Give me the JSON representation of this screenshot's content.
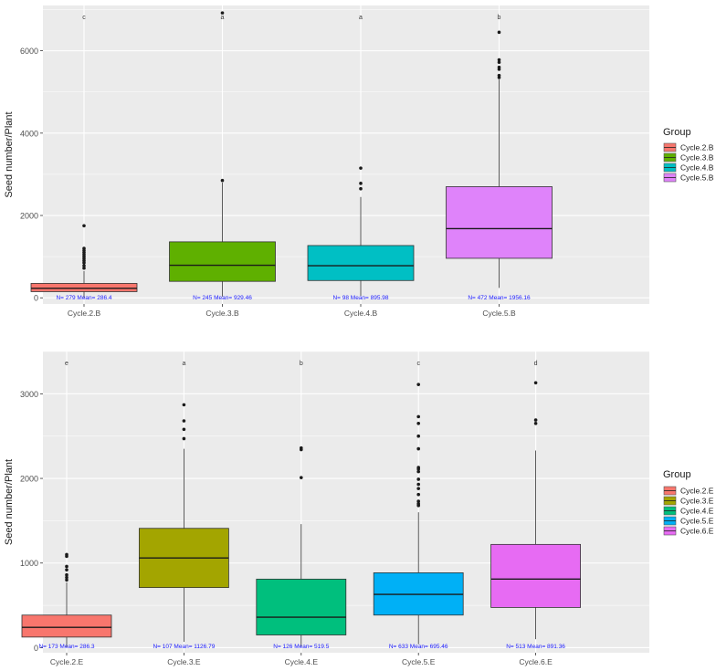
{
  "figure": "boxplot-panels",
  "colors": {
    "panel_bg": "#ebebeb",
    "grid": "#ffffff",
    "annotation": "#1a1aff",
    "axis_text": "#4d4d4d",
    "text": "#1a1a1a"
  },
  "chart_data": [
    {
      "type": "boxplot",
      "ylabel": "Seed number/Plant",
      "ylim": [
        -150,
        7100
      ],
      "yticks": [
        0,
        2000,
        4000,
        6000
      ],
      "legend": {
        "title": "Group",
        "placement": "right"
      },
      "groups": [
        {
          "name": "Cycle.2.B",
          "color": "#f8766d",
          "q1": 150,
          "median": 230,
          "q3": 350,
          "whisker_low": 0,
          "whisker_high": 650,
          "outliers": [
            720,
            780,
            850,
            900,
            950,
            1000,
            1050,
            1100,
            1150,
            1200,
            1750
          ],
          "letter": "c",
          "annotation": "N= 279 Mean= 286.4"
        },
        {
          "name": "Cycle.3.B",
          "color": "#5fb000",
          "q1": 400,
          "median": 790,
          "q3": 1360,
          "whisker_low": 30,
          "whisker_high": 2800,
          "outliers": [
            2850,
            6920
          ],
          "letter": "a",
          "annotation": "N= 245 Mean= 929.46"
        },
        {
          "name": "Cycle.4.B",
          "color": "#00bfc4",
          "q1": 420,
          "median": 780,
          "q3": 1270,
          "whisker_low": 50,
          "whisker_high": 2450,
          "outliers": [
            2650,
            2780,
            3150
          ],
          "letter": "a",
          "annotation": "N= 98 Mean= 895.98"
        },
        {
          "name": "Cycle.5.B",
          "color": "#df83fa",
          "q1": 960,
          "median": 1680,
          "q3": 2700,
          "whisker_low": 240,
          "whisker_high": 5300,
          "outliers": [
            5350,
            5400,
            5550,
            5600,
            5720,
            5780,
            6450
          ],
          "letter": "b",
          "annotation": "N= 472 Mean= 1956.16"
        }
      ]
    },
    {
      "type": "boxplot",
      "ylabel": "Seed number/Plant",
      "ylim": [
        -60,
        3500
      ],
      "yticks": [
        0,
        1000,
        2000,
        3000
      ],
      "legend": {
        "title": "Group",
        "placement": "right"
      },
      "groups": [
        {
          "name": "Cycle.2.E",
          "color": "#f8766d",
          "q1": 125,
          "median": 240,
          "q3": 385,
          "whisker_low": 5,
          "whisker_high": 770,
          "outliers": [
            800,
            830,
            860,
            920,
            960,
            1080,
            1100
          ],
          "letter": "e",
          "annotation": "N= 173 Mean= 286.3"
        },
        {
          "name": "Cycle.3.E",
          "color": "#a3a500",
          "q1": 710,
          "median": 1060,
          "q3": 1410,
          "whisker_low": 70,
          "whisker_high": 2350,
          "outliers": [
            2470,
            2580,
            2680,
            2870
          ],
          "letter": "a",
          "annotation": "N= 107 Mean= 1126.79"
        },
        {
          "name": "Cycle.4.E",
          "color": "#00bf7d",
          "q1": 150,
          "median": 360,
          "q3": 810,
          "whisker_low": 10,
          "whisker_high": 1460,
          "outliers": [
            2010,
            2340,
            2360
          ],
          "letter": "b",
          "annotation": "N= 126 Mean= 519.5"
        },
        {
          "name": "Cycle.5.E",
          "color": "#00b0f6",
          "q1": 385,
          "median": 630,
          "q3": 885,
          "whisker_low": 40,
          "whisker_high": 1600,
          "outliers": [
            1680,
            1700,
            1730,
            1810,
            1880,
            1930,
            1990,
            2080,
            2110,
            2130,
            2350,
            2500,
            2650,
            2730,
            3110
          ],
          "letter": "c",
          "annotation": "N= 633 Mean= 695.46"
        },
        {
          "name": "Cycle.6.E",
          "color": "#e76bf3",
          "q1": 475,
          "median": 810,
          "q3": 1220,
          "whisker_low": 100,
          "whisker_high": 2330,
          "outliers": [
            2650,
            2690,
            3130
          ],
          "letter": "d",
          "annotation": "N= 513 Mean= 891.36"
        }
      ]
    }
  ]
}
